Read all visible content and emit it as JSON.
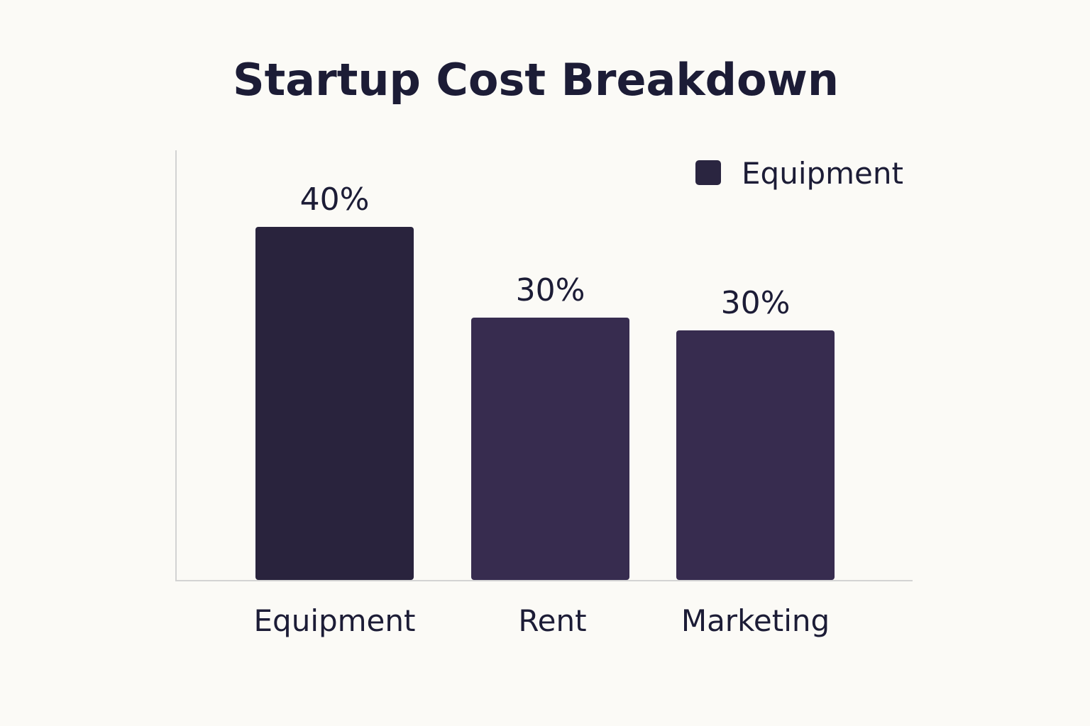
{
  "chart_data": {
    "type": "bar",
    "title": "Startup Cost Breakdown",
    "categories": [
      "Equipment",
      "Rent",
      "Marketing"
    ],
    "values": [
      40,
      30,
      30
    ],
    "data_labels": [
      "40%",
      "30%",
      "30%"
    ],
    "legend": {
      "position": "top-right",
      "entries": [
        {
          "label": "Equipment",
          "color": "#2a2540"
        }
      ]
    },
    "xlabel": "",
    "ylabel": "",
    "ylim": [
      0,
      40
    ],
    "grid": false,
    "colors": {
      "bars": [
        "#29233d",
        "#372c4f",
        "#372c4f"
      ],
      "axis": "#d3d3d3",
      "text": "#1c1c36"
    }
  }
}
